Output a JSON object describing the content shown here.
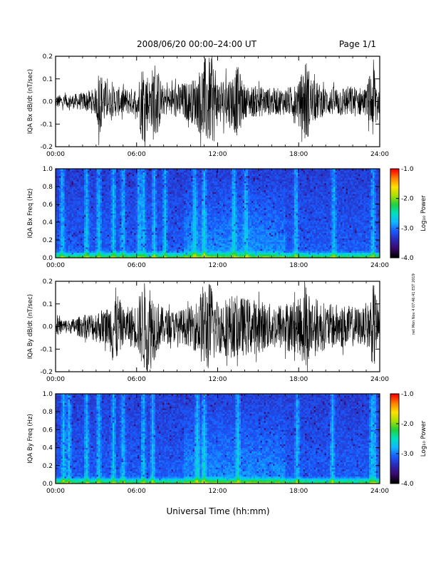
{
  "page": {
    "title": "2008/06/20  00:00–24:00 UT",
    "page_label": "Page 1/1",
    "xlabel": "Universal Time (hh:mm)",
    "side_note": "net Mon Nov 4 07:46:41 EST 2019"
  },
  "colors": {
    "background": "#ffffff",
    "trace": "#000000",
    "axes": "#000000",
    "colormap": [
      "#000000",
      "#3a0a6e",
      "#2a2ab8",
      "#1a5cff",
      "#10b8ff",
      "#00e0c0",
      "#20d040",
      "#a8e000",
      "#ffe000",
      "#ff8000",
      "#ff0000"
    ]
  },
  "chart_data": [
    {
      "type": "line",
      "ylabel": "IQA Bx dB/dt (nT/sec)",
      "xlim": [
        0,
        24
      ],
      "ylim": [
        -0.2,
        0.2
      ],
      "xticks": [
        "00:00",
        "06:00",
        "12:00",
        "18:00",
        "24:00"
      ],
      "yticks": [
        "-0.2",
        "-0.1",
        "0.0",
        "0.1",
        "0.2"
      ],
      "series": [
        {
          "x": [
            0,
            1,
            2,
            3,
            3.2,
            4,
            4.3,
            5,
            6,
            6.5,
            7,
            7.3,
            8,
            9,
            10,
            10.5,
            11,
            11.3,
            11.8,
            12,
            13,
            13.5,
            14,
            15,
            16,
            17,
            18,
            18.5,
            19,
            20,
            21,
            22,
            23,
            23.6,
            24
          ],
          "amplitude": [
            0.03,
            0.03,
            0.04,
            0.06,
            0.15,
            0.06,
            0.07,
            0.06,
            0.06,
            0.2,
            0.09,
            0.2,
            0.06,
            0.08,
            0.09,
            0.12,
            0.2,
            0.2,
            0.18,
            0.1,
            0.12,
            0.16,
            0.07,
            0.07,
            0.06,
            0.06,
            0.08,
            0.2,
            0.1,
            0.06,
            0.07,
            0.07,
            0.06,
            0.2,
            0.04
          ]
        }
      ]
    },
    {
      "type": "heatmap",
      "ylabel": "IQA Bx Freq (Hz)",
      "xlim": [
        0,
        24
      ],
      "ylim": [
        0.0,
        1.0
      ],
      "xticks": [
        "00:00",
        "06:00",
        "12:00",
        "18:00",
        "24:00"
      ],
      "yticks": [
        "0.0",
        "0.2",
        "0.4",
        "0.6",
        "0.8",
        "1.0"
      ],
      "colorbar": {
        "label": "Log₁₀ Power",
        "range": [
          -4.0,
          -1.0
        ],
        "ticks": [
          "-1.0",
          "-2.0",
          "-3.0",
          "-4.0"
        ]
      },
      "bright_bands_ut": [
        0.5,
        2.3,
        3.2,
        4.3,
        5.0,
        6.2,
        6.5,
        7.3,
        8.1,
        10.3,
        11.0,
        13.2,
        14.1,
        17.8,
        20.6,
        23.5
      ]
    },
    {
      "type": "line",
      "ylabel": "IQA By dB/dt (nT/sec)",
      "xlim": [
        0,
        24
      ],
      "ylim": [
        -0.2,
        0.2
      ],
      "xticks": [
        "00:00",
        "06:00",
        "12:00",
        "18:00",
        "24:00"
      ],
      "yticks": [
        "-0.2",
        "-0.1",
        "0.0",
        "0.1",
        "0.2"
      ],
      "series": [
        {
          "x": [
            0,
            1,
            2,
            3,
            4,
            4.3,
            5,
            6,
            6.5,
            7,
            7.5,
            8,
            9,
            10,
            10.5,
            11,
            11.5,
            12,
            13,
            14,
            15,
            16,
            17,
            18,
            18.5,
            19,
            20,
            21,
            22,
            23,
            23.6,
            24
          ],
          "amplitude": [
            0.04,
            0.03,
            0.05,
            0.07,
            0.09,
            0.2,
            0.08,
            0.1,
            0.2,
            0.2,
            0.12,
            0.08,
            0.07,
            0.09,
            0.12,
            0.2,
            0.2,
            0.12,
            0.14,
            0.13,
            0.12,
            0.1,
            0.11,
            0.12,
            0.2,
            0.14,
            0.1,
            0.1,
            0.09,
            0.08,
            0.2,
            0.05
          ]
        }
      ]
    },
    {
      "type": "heatmap",
      "ylabel": "IQA By Freq (Hz)",
      "xlim": [
        0,
        24
      ],
      "ylim": [
        0.0,
        1.0
      ],
      "xticks": [
        "00:00",
        "06:00",
        "12:00",
        "18:00",
        "24:00"
      ],
      "yticks": [
        "0.0",
        "0.2",
        "0.4",
        "0.6",
        "0.8",
        "1.0"
      ],
      "colorbar": {
        "label": "Log₁₀ Power",
        "range": [
          -4.0,
          -1.0
        ],
        "ticks": [
          "-1.0",
          "-2.0",
          "-3.0",
          "-4.0"
        ]
      },
      "bright_bands_ut": [
        0.6,
        1.0,
        2.3,
        3.2,
        4.3,
        5.0,
        6.5,
        7.2,
        10.5,
        11.0,
        13.5,
        17.9,
        20.5,
        23.4,
        23.6
      ]
    }
  ]
}
